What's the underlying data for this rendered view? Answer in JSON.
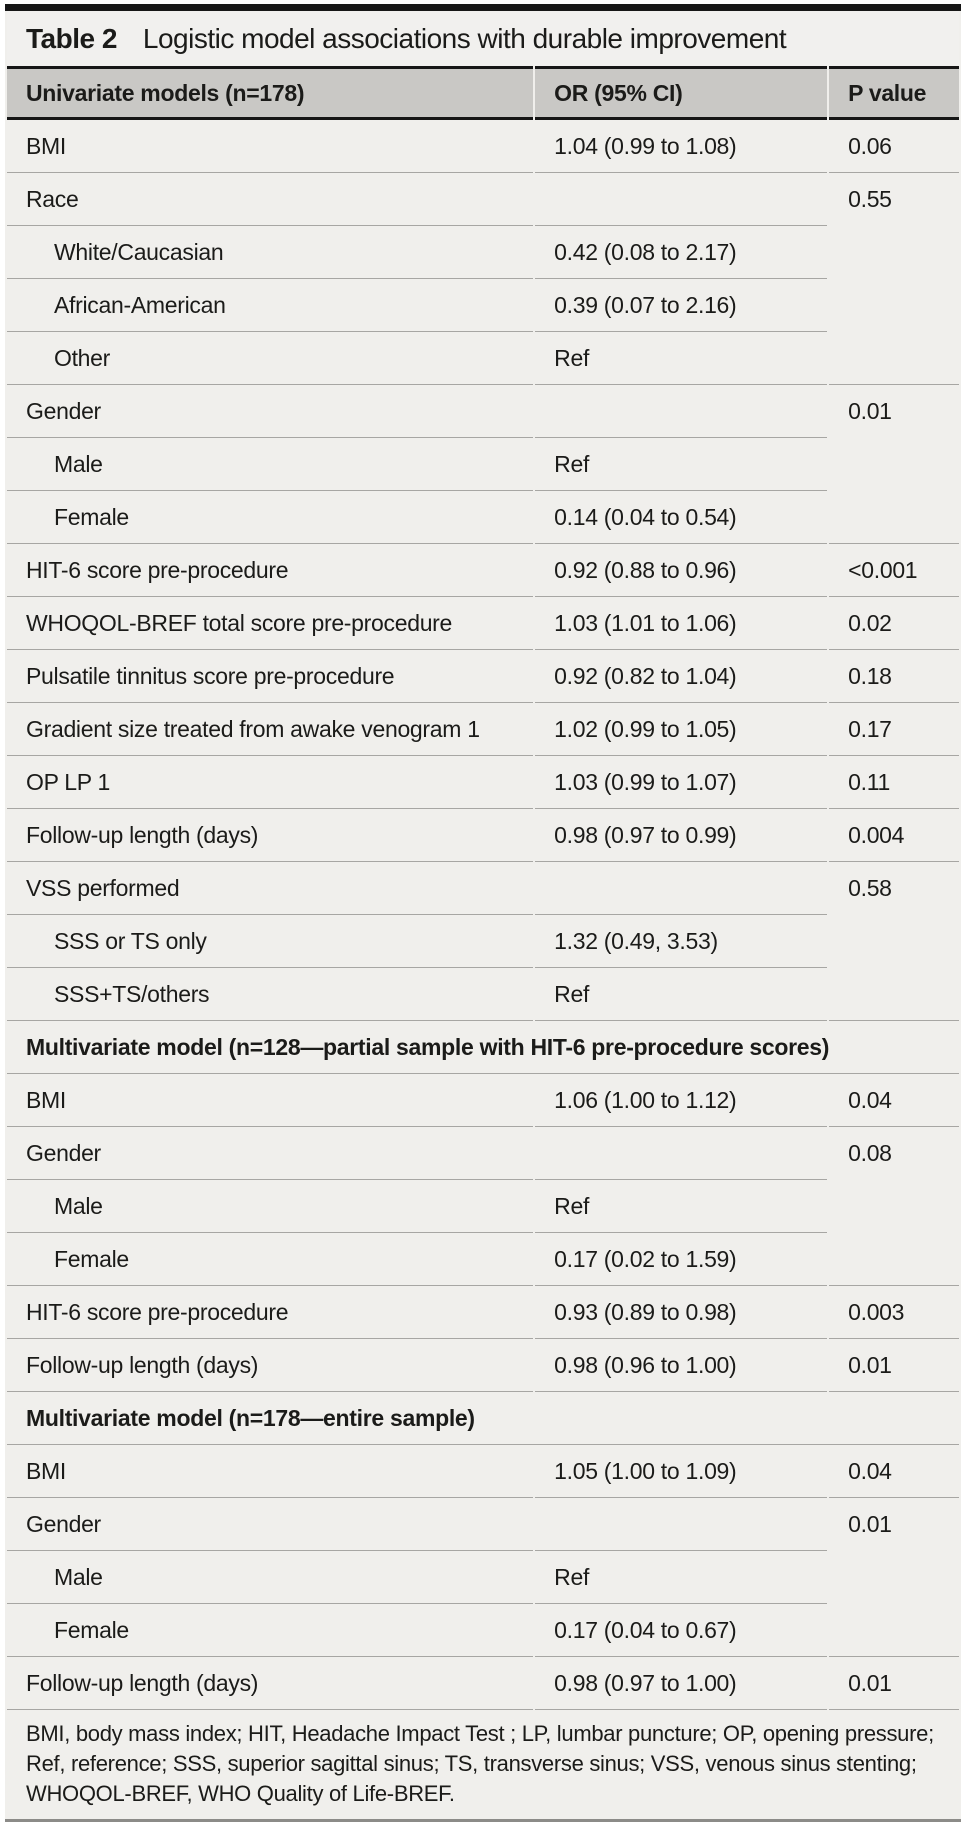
{
  "table": {
    "title_label": "Table 2",
    "title_text": "Logistic model associations with durable improvement",
    "columns": [
      "Univariate models (n=178)",
      "OR (95% CI)",
      "P value"
    ],
    "sections": [
      {
        "header": null,
        "rows": [
          {
            "label": "BMI",
            "indent": false,
            "or": "1.04 (0.99 to 1.08)",
            "p": "0.06"
          },
          {
            "label": "Race",
            "indent": false,
            "or": "",
            "p": "0.55",
            "p_rowspan": 4
          },
          {
            "label": "White/Caucasian",
            "indent": true,
            "or": "0.42 (0.08 to 2.17)"
          },
          {
            "label": "African-American",
            "indent": true,
            "or": "0.39 (0.07 to 2.16)"
          },
          {
            "label": "Other",
            "indent": true,
            "or": "Ref"
          },
          {
            "label": "Gender",
            "indent": false,
            "or": "",
            "p": "0.01",
            "p_rowspan": 3
          },
          {
            "label": "Male",
            "indent": true,
            "or": "Ref"
          },
          {
            "label": "Female",
            "indent": true,
            "or": "0.14 (0.04 to 0.54)"
          },
          {
            "label": "HIT-6 score pre-procedure",
            "indent": false,
            "or": "0.92 (0.88 to 0.96)",
            "p": "<0.001"
          },
          {
            "label": "WHOQOL-BREF total score pre-procedure",
            "indent": false,
            "or": "1.03 (1.01 to 1.06)",
            "p": "0.02"
          },
          {
            "label": "Pulsatile tinnitus score pre-procedure",
            "indent": false,
            "or": "0.92 (0.82 to 1.04)",
            "p": "0.18"
          },
          {
            "label": "Gradient size treated from awake venogram 1",
            "indent": false,
            "or": "1.02 (0.99 to 1.05)",
            "p": "0.17"
          },
          {
            "label": "OP LP 1",
            "indent": false,
            "or": "1.03 (0.99 to 1.07)",
            "p": "0.11"
          },
          {
            "label": "Follow-up length (days)",
            "indent": false,
            "or": "0.98 (0.97 to 0.99)",
            "p": "0.004"
          },
          {
            "label": "VSS performed",
            "indent": false,
            "or": "",
            "p": "0.58",
            "p_rowspan": 3
          },
          {
            "label": "SSS or TS only",
            "indent": true,
            "or": "1.32 (0.49, 3.53)"
          },
          {
            "label": "SSS+TS/others",
            "indent": true,
            "or": "Ref"
          }
        ]
      },
      {
        "header": "Multivariate model (n=128—partial sample with HIT-6 pre-procedure scores)",
        "rows": [
          {
            "label": "BMI",
            "indent": false,
            "or": "1.06 (1.00 to 1.12)",
            "p": "0.04"
          },
          {
            "label": "Gender",
            "indent": false,
            "or": "",
            "p": "0.08",
            "p_rowspan": 3
          },
          {
            "label": "Male",
            "indent": true,
            "or": "Ref"
          },
          {
            "label": "Female",
            "indent": true,
            "or": "0.17 (0.02 to 1.59)"
          },
          {
            "label": "HIT-6 score pre-procedure",
            "indent": false,
            "or": "0.93 (0.89 to 0.98)",
            "p": "0.003"
          },
          {
            "label": "Follow-up length (days)",
            "indent": false,
            "or": "0.98 (0.96 to 1.00)",
            "p": "0.01"
          }
        ]
      },
      {
        "header": "Multivariate model (n=178—entire sample)",
        "rows": [
          {
            "label": "BMI",
            "indent": false,
            "or": "1.05 (1.00 to 1.09)",
            "p": "0.04"
          },
          {
            "label": "Gender",
            "indent": false,
            "or": "",
            "p": "0.01",
            "p_rowspan": 3
          },
          {
            "label": "Male",
            "indent": true,
            "or": "Ref"
          },
          {
            "label": "Female",
            "indent": true,
            "or": "0.17 (0.04 to 0.67)"
          },
          {
            "label": "Follow-up length (days)",
            "indent": false,
            "or": "0.98 (0.97 to 1.00)",
            "p": "0.01"
          }
        ]
      }
    ],
    "footnote": "BMI, body mass index; HIT, Headache Impact Test ; LP, lumbar puncture; OP, opening pressure; Ref, reference; SSS, superior sagittal sinus; TS, transverse sinus; VSS, venous sinus stenting; WHOQOL-BREF, WHO Quality of Life-BREF.",
    "colors": {
      "header_row_bg": "#c9c8c5",
      "body_bg": "#f0efec",
      "title_bg": "#f1f0ee",
      "heavy_border": "#161616",
      "row_line": "#a7a6a3",
      "bottom_border": "#8c8b88",
      "text": "#1b1b19"
    }
  }
}
